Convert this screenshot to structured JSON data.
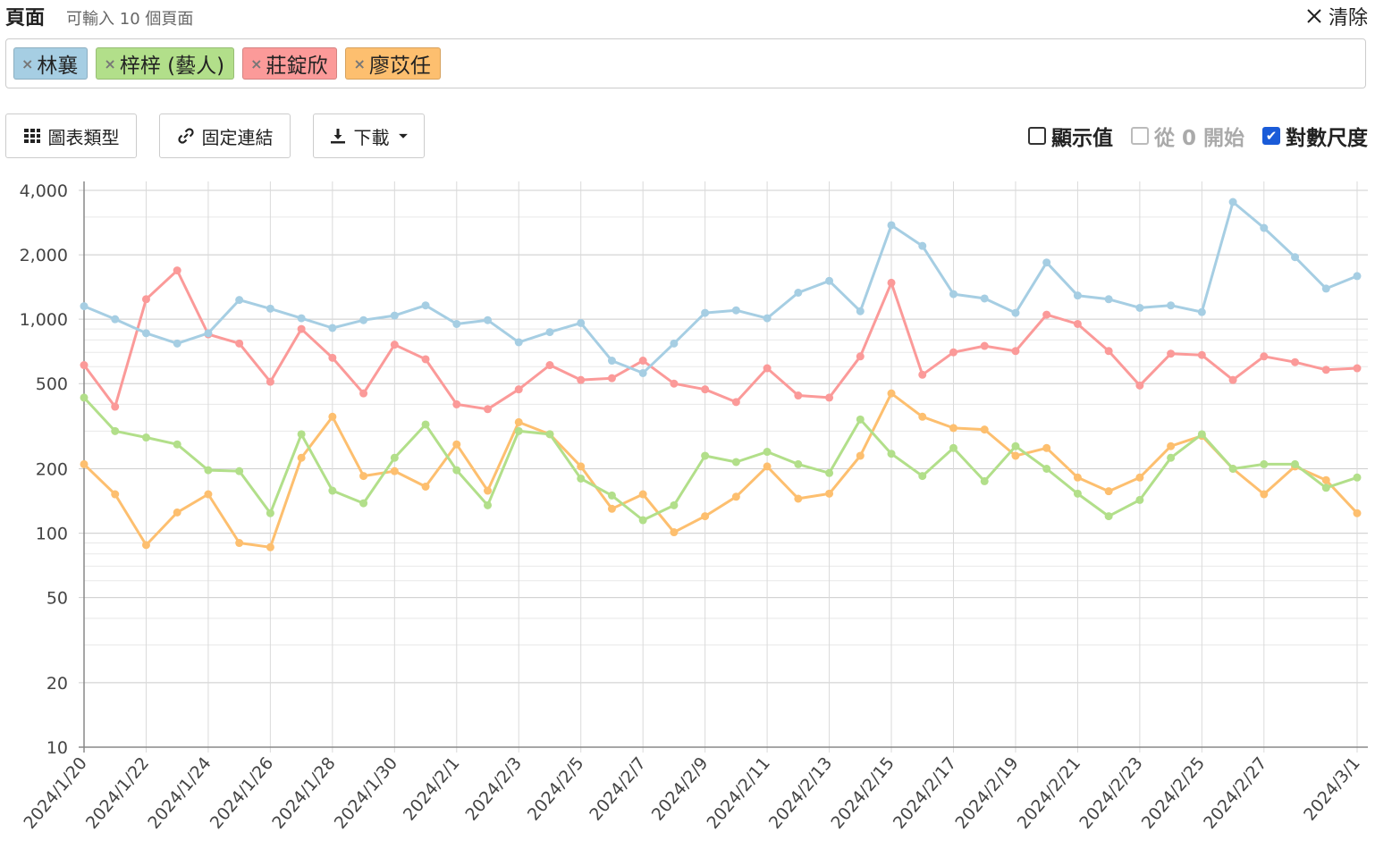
{
  "header": {
    "title": "頁面",
    "hint": "可輸入 10 個頁面",
    "clear_label": "清除"
  },
  "tags": [
    {
      "label": "林襄",
      "color": "#a6cee3"
    },
    {
      "label": "梓梓 (藝人)",
      "color": "#b2df8a"
    },
    {
      "label": "莊錠欣",
      "color": "#fb9a99"
    },
    {
      "label": "廖苡任",
      "color": "#fdbf6f"
    }
  ],
  "toolbar": {
    "chart_type_label": "圖表類型",
    "permalink_label": "固定連結",
    "download_label": "下載"
  },
  "options": {
    "show_values": "顯示值",
    "start_zero": "從 0 開始",
    "log_scale": "對數尺度"
  },
  "chart_data": {
    "type": "line",
    "scale": "log",
    "ylim": [
      10,
      4000
    ],
    "yticks": [
      10,
      20,
      50,
      100,
      200,
      500,
      1000,
      2000,
      4000
    ],
    "ytick_labels": [
      "10",
      "20",
      "50",
      "100",
      "200",
      "500",
      "1,000",
      "2,000",
      "4,000"
    ],
    "x": [
      "2024/1/20",
      "2024/1/21",
      "2024/1/22",
      "2024/1/23",
      "2024/1/24",
      "2024/1/25",
      "2024/1/26",
      "2024/1/27",
      "2024/1/28",
      "2024/1/29",
      "2024/1/30",
      "2024/1/31",
      "2024/2/1",
      "2024/2/2",
      "2024/2/3",
      "2024/2/4",
      "2024/2/5",
      "2024/2/6",
      "2024/2/7",
      "2024/2/8",
      "2024/2/9",
      "2024/2/10",
      "2024/2/11",
      "2024/2/12",
      "2024/2/13",
      "2024/2/14",
      "2024/2/15",
      "2024/2/16",
      "2024/2/17",
      "2024/2/18",
      "2024/2/19",
      "2024/2/20",
      "2024/2/21",
      "2024/2/22",
      "2024/2/23",
      "2024/2/24",
      "2024/2/25",
      "2024/2/26",
      "2024/2/27",
      "2024/2/28",
      "2024/2/29",
      "2024/3/1"
    ],
    "x_tick_labels": [
      "2024/1/20",
      "2024/1/22",
      "2024/1/24",
      "2024/1/26",
      "2024/1/28",
      "2024/1/30",
      "2024/2/1",
      "2024/2/3",
      "2024/2/5",
      "2024/2/7",
      "2024/2/9",
      "2024/2/11",
      "2024/2/13",
      "2024/2/15",
      "2024/2/17",
      "2024/2/19",
      "2024/2/21",
      "2024/2/23",
      "2024/2/25",
      "2024/2/27",
      "2024/3/1"
    ],
    "series": [
      {
        "name": "林襄",
        "color": "#a6cee3",
        "values": [
          1150,
          1000,
          860,
          770,
          860,
          1230,
          1120,
          1010,
          910,
          990,
          1040,
          1160,
          950,
          990,
          780,
          870,
          960,
          640,
          560,
          770,
          1070,
          1100,
          1010,
          1330,
          1510,
          1090,
          2750,
          2200,
          1310,
          1250,
          1070,
          1840,
          1290,
          1240,
          1130,
          1160,
          1080,
          3530,
          2670,
          1950,
          1390,
          1590
        ]
      },
      {
        "name": "梓梓 (藝人)",
        "color": "#b2df8a",
        "values": [
          430,
          300,
          280,
          260,
          197,
          195,
          124,
          290,
          158,
          138,
          225,
          322,
          197,
          135,
          300,
          290,
          180,
          150,
          115,
          135,
          230,
          215,
          240,
          210,
          191,
          340,
          235,
          185,
          250,
          175,
          255,
          200,
          153,
          120,
          143,
          225,
          290,
          200,
          210,
          210,
          163,
          182
        ]
      },
      {
        "name": "莊錠欣",
        "color": "#fb9a99",
        "values": [
          610,
          390,
          1240,
          1690,
          850,
          770,
          510,
          900,
          660,
          450,
          760,
          650,
          400,
          380,
          470,
          610,
          520,
          530,
          640,
          500,
          470,
          410,
          590,
          440,
          430,
          670,
          1480,
          550,
          700,
          750,
          710,
          1050,
          950,
          710,
          490,
          690,
          680,
          520,
          670,
          630,
          580,
          590
        ]
      },
      {
        "name": "廖苡任",
        "color": "#fdbf6f",
        "values": [
          210,
          152,
          88,
          125,
          152,
          90,
          86,
          225,
          350,
          185,
          195,
          165,
          260,
          158,
          330,
          290,
          205,
          130,
          152,
          101,
          120,
          148,
          205,
          145,
          153,
          230,
          450,
          350,
          310,
          305,
          230,
          250,
          182,
          157,
          182,
          255,
          285,
          200,
          152,
          205,
          177,
          124
        ]
      }
    ]
  }
}
